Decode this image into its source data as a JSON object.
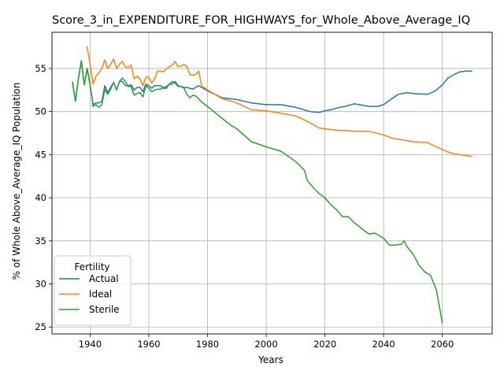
{
  "chart_data": {
    "type": "line",
    "title": "Score_3_in_EXPENDITURE_FOR_HIGHWAYS_for_Whole_Above_Average_IQ",
    "xlabel": "Years",
    "ylabel": "% of Whole Above_Average_IQ Population",
    "xlim": [
      1927,
      2077
    ],
    "ylim": [
      24.2,
      59.2
    ],
    "xticks": [
      1940,
      1960,
      1980,
      2000,
      2020,
      2040,
      2060
    ],
    "yticks": [
      25,
      30,
      35,
      40,
      45,
      50,
      55
    ],
    "grid": true,
    "legend": {
      "title": "Fertility",
      "position": "lower-left",
      "entries": [
        "Actual",
        "Ideal",
        "Sterile"
      ]
    },
    "series": [
      {
        "name": "Actual",
        "color": "#1f77b4",
        "x": [
          1934,
          1935,
          1936,
          1937,
          1938,
          1939,
          1940,
          1941,
          1942,
          1943,
          1944,
          1945,
          1946,
          1947,
          1948,
          1949,
          1950,
          1951,
          1952,
          1953,
          1954,
          1955,
          1956,
          1957,
          1958,
          1959,
          1960,
          1961,
          1962,
          1963,
          1964,
          1965,
          1966,
          1967,
          1968,
          1969,
          1970,
          1971,
          1972,
          1973,
          1974,
          1975,
          1976,
          1977,
          1978,
          1980,
          1985,
          1990,
          1995,
          2000,
          2005,
          2010,
          2015,
          2018,
          2020,
          2022,
          2025,
          2027,
          2030,
          2035,
          2038,
          2040,
          2042,
          2045,
          2048,
          2050,
          2055,
          2057,
          2058,
          2060,
          2062,
          2064,
          2066,
          2068,
          2070
        ],
        "values": [
          53.4,
          51.2,
          53.8,
          55.9,
          53.1,
          55.0,
          53.1,
          50.8,
          51.0,
          51.0,
          51.2,
          53.0,
          52.2,
          52.8,
          53.4,
          52.5,
          53.5,
          53.5,
          53.0,
          53.0,
          53.1,
          52.5,
          52.8,
          52.8,
          52.3,
          53.2,
          53.0,
          52.7,
          53.0,
          53.0,
          53.0,
          52.7,
          52.7,
          53.2,
          53.2,
          53.5,
          53.0,
          52.9,
          52.8,
          52.8,
          52.7,
          52.6,
          52.8,
          53.0,
          52.8,
          52.4,
          51.6,
          51.4,
          51.0,
          50.8,
          50.8,
          50.5,
          50.0,
          49.9,
          50.1,
          50.2,
          50.5,
          50.6,
          50.9,
          50.6,
          50.6,
          50.8,
          51.3,
          52.0,
          52.2,
          52.1,
          52.0,
          52.3,
          52.5,
          53.1,
          53.9,
          54.3,
          54.6,
          54.7,
          54.7
        ]
      },
      {
        "name": "Ideal",
        "color": "#ff7f0e",
        "x": [
          1939,
          1940,
          1941,
          1942,
          1943,
          1944,
          1945,
          1946,
          1947,
          1948,
          1949,
          1950,
          1951,
          1952,
          1953,
          1954,
          1955,
          1956,
          1957,
          1958,
          1959,
          1960,
          1961,
          1962,
          1963,
          1964,
          1965,
          1966,
          1967,
          1968,
          1969,
          1970,
          1971,
          1972,
          1973,
          1974,
          1975,
          1976,
          1977,
          1978,
          1980,
          1985,
          1990,
          1995,
          2000,
          2005,
          2010,
          2015,
          2018,
          2020,
          2025,
          2027,
          2030,
          2035,
          2040,
          2043,
          2045,
          2050,
          2055,
          2058,
          2060,
          2062,
          2064,
          2066,
          2068,
          2070
        ],
        "values": [
          57.5,
          55.5,
          53.2,
          54.1,
          54.5,
          55.0,
          56.0,
          55.0,
          55.5,
          56.1,
          55.0,
          55.5,
          55.8,
          55.2,
          55.1,
          55.4,
          53.8,
          54.1,
          53.8,
          53.0,
          54.0,
          54.0,
          53.3,
          53.8,
          54.7,
          54.7,
          54.6,
          55.0,
          55.2,
          55.4,
          55.8,
          55.2,
          55.3,
          55.5,
          55.2,
          54.3,
          54.2,
          54.3,
          54.7,
          53.0,
          52.5,
          51.5,
          51.0,
          50.2,
          50.1,
          49.8,
          49.5,
          48.7,
          48.1,
          48.0,
          47.8,
          47.8,
          47.7,
          47.7,
          47.3,
          46.9,
          46.8,
          46.5,
          46.4,
          45.9,
          45.6,
          45.3,
          45.1,
          45.0,
          44.9,
          44.8
        ]
      },
      {
        "name": "Sterile",
        "color": "#2ca02c",
        "x": [
          1934,
          1935,
          1936,
          1937,
          1938,
          1939,
          1940,
          1941,
          1942,
          1943,
          1944,
          1945,
          1946,
          1947,
          1948,
          1949,
          1950,
          1951,
          1952,
          1953,
          1954,
          1955,
          1956,
          1957,
          1958,
          1959,
          1960,
          1961,
          1962,
          1963,
          1964,
          1965,
          1966,
          1967,
          1968,
          1969,
          1970,
          1971,
          1972,
          1973,
          1974,
          1975,
          1976,
          1977,
          1978,
          1980,
          1985,
          1988,
          1990,
          1995,
          2000,
          2005,
          2008,
          2010,
          2013,
          2014,
          2016,
          2018,
          2020,
          2022,
          2024,
          2026,
          2028,
          2030,
          2033,
          2035,
          2037,
          2040,
          2042,
          2044,
          2046,
          2047,
          2048,
          2050,
          2052,
          2054,
          2056,
          2058,
          2060
        ],
        "values": [
          53.4,
          51.2,
          53.8,
          55.9,
          53.1,
          55.0,
          53.1,
          50.6,
          50.8,
          50.5,
          50.8,
          52.6,
          52.0,
          52.6,
          53.4,
          52.5,
          53.5,
          53.9,
          53.5,
          52.9,
          52.9,
          51.9,
          52.1,
          52.2,
          51.7,
          53.0,
          52.7,
          52.3,
          52.5,
          52.6,
          52.6,
          52.8,
          52.9,
          53.2,
          53.5,
          53.3,
          52.9,
          52.9,
          52.7,
          52.0,
          51.6,
          51.9,
          51.8,
          51.5,
          51.1,
          50.6,
          49.2,
          48.4,
          48.0,
          46.5,
          45.9,
          45.4,
          44.7,
          44.2,
          43.2,
          42.0,
          41.2,
          40.5,
          40.0,
          39.2,
          38.6,
          37.8,
          37.8,
          37.1,
          36.3,
          35.8,
          35.9,
          35.3,
          34.5,
          34.5,
          34.6,
          35.0,
          34.3,
          33.5,
          32.2,
          31.4,
          31.0,
          29.3,
          25.5
        ]
      }
    ]
  }
}
